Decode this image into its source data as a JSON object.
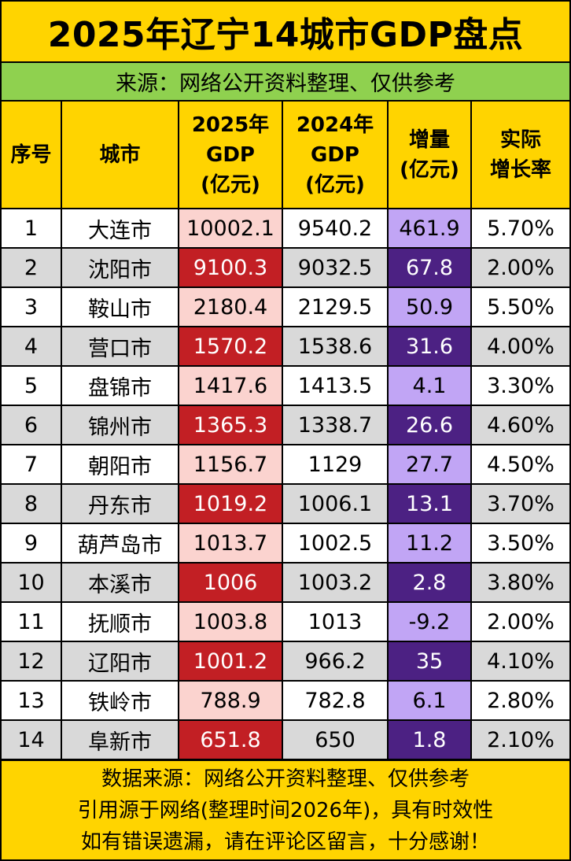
{
  "title": "2025年辽宁14城市GDP盘点",
  "source": "来源：网络公开资料整理、仅供参考",
  "table": {
    "headers": {
      "rank": "序号",
      "city": "城市",
      "gdp2025": [
        "2025年",
        "GDP",
        "(亿元)"
      ],
      "gdp2024": [
        "2024年",
        "GDP",
        "(亿元)"
      ],
      "increase": [
        "增量",
        "(亿元)"
      ],
      "growth": [
        "实际",
        "增长率"
      ]
    },
    "rows": [
      {
        "rank": "1",
        "city": "大连市",
        "gdp2025": "10002.1",
        "gdp2024": "9540.2",
        "increase": "461.9",
        "growth": "5.70%"
      },
      {
        "rank": "2",
        "city": "沈阳市",
        "gdp2025": "9100.3",
        "gdp2024": "9032.5",
        "increase": "67.8",
        "growth": "2.00%"
      },
      {
        "rank": "3",
        "city": "鞍山市",
        "gdp2025": "2180.4",
        "gdp2024": "2129.5",
        "increase": "50.9",
        "growth": "5.50%"
      },
      {
        "rank": "4",
        "city": "营口市",
        "gdp2025": "1570.2",
        "gdp2024": "1538.6",
        "increase": "31.6",
        "growth": "4.00%"
      },
      {
        "rank": "5",
        "city": "盘锦市",
        "gdp2025": "1417.6",
        "gdp2024": "1413.5",
        "increase": "4.1",
        "growth": "3.30%"
      },
      {
        "rank": "6",
        "city": "锦州市",
        "gdp2025": "1365.3",
        "gdp2024": "1338.7",
        "increase": "26.6",
        "growth": "4.60%"
      },
      {
        "rank": "7",
        "city": "朝阳市",
        "gdp2025": "1156.7",
        "gdp2024": "1129",
        "increase": "27.7",
        "growth": "4.50%"
      },
      {
        "rank": "8",
        "city": "丹东市",
        "gdp2025": "1019.2",
        "gdp2024": "1006.1",
        "increase": "13.1",
        "growth": "3.70%"
      },
      {
        "rank": "9",
        "city": "葫芦岛市",
        "gdp2025": "1013.7",
        "gdp2024": "1002.5",
        "increase": "11.2",
        "growth": "3.50%"
      },
      {
        "rank": "10",
        "city": "本溪市",
        "gdp2025": "1006",
        "gdp2024": "1003.2",
        "increase": "2.8",
        "growth": "3.80%"
      },
      {
        "rank": "11",
        "city": "抚顺市",
        "gdp2025": "1003.8",
        "gdp2024": "1013",
        "increase": "-9.2",
        "growth": "2.00%"
      },
      {
        "rank": "12",
        "city": "辽阳市",
        "gdp2025": "1001.2",
        "gdp2024": "966.2",
        "increase": "35",
        "growth": "4.10%"
      },
      {
        "rank": "13",
        "city": "铁岭市",
        "gdp2025": "788.9",
        "gdp2024": "782.8",
        "increase": "6.1",
        "growth": "2.80%"
      },
      {
        "rank": "14",
        "city": "阜新市",
        "gdp2025": "651.8",
        "gdp2024": "650",
        "increase": "1.8",
        "growth": "2.10%"
      }
    ]
  },
  "footer": [
    "数据来源：网络公开资料整理、仅供参考",
    "引用源于网络(整理时间2026年)，具有时效性",
    "如有错误遗漏，请在评论区留言，十分感谢！"
  ],
  "colors": {
    "header_yellow": "#FFD400",
    "source_green": "#8FD14F",
    "gdp2025_light": "#FBD3CF",
    "gdp2025_dark": "#C21F24",
    "increase_light": "#C1A5F5",
    "increase_dark": "#4C2183",
    "row_gray": "#D9D9D9"
  }
}
